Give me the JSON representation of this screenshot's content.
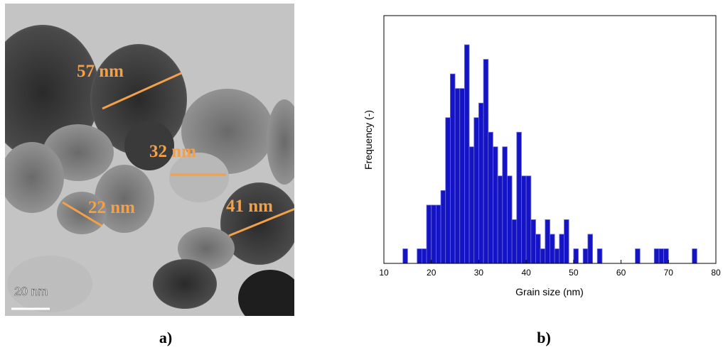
{
  "image": {
    "annotations": [
      "57 nm",
      "32 nm",
      "22 nm",
      "41 nm"
    ],
    "scale_bar": "20 nm"
  },
  "captions": [
    "a)",
    "b)"
  ],
  "chart_data": {
    "type": "histogram",
    "xlabel": "Grain size  (nm)",
    "ylabel": "Frequency (-)",
    "bins": [
      14,
      15,
      16,
      17,
      18,
      19,
      20,
      21,
      22,
      23,
      24,
      25,
      26,
      27,
      28,
      29,
      30,
      31,
      32,
      33,
      34,
      35,
      36,
      37,
      38,
      39,
      40,
      41,
      42,
      43,
      44,
      45,
      46,
      47,
      48,
      49,
      50,
      51,
      52,
      53,
      54,
      55,
      56,
      57,
      58,
      59,
      60,
      61,
      62,
      63,
      64,
      65,
      66,
      67,
      68,
      69,
      70,
      71,
      72,
      73,
      74,
      75,
      76
    ],
    "values": [
      1,
      0,
      0,
      1,
      1,
      4,
      4,
      4,
      5,
      10,
      13,
      12,
      12,
      15,
      8,
      10,
      11,
      14,
      9,
      8,
      6,
      8,
      6,
      3,
      9,
      6,
      6,
      3,
      2,
      1,
      3,
      2,
      1,
      2,
      3,
      0,
      1,
      0,
      1,
      2,
      0,
      1,
      0,
      0,
      0,
      0,
      0,
      0,
      0,
      1,
      0,
      0,
      0,
      1,
      1,
      1,
      0,
      0,
      0,
      0,
      0,
      1
    ],
    "color": "#1414c4",
    "xlim": [
      10,
      80
    ],
    "xticks": [
      10,
      20,
      30,
      40,
      50,
      60,
      70,
      80
    ],
    "ylim": [
      0,
      17
    ]
  }
}
